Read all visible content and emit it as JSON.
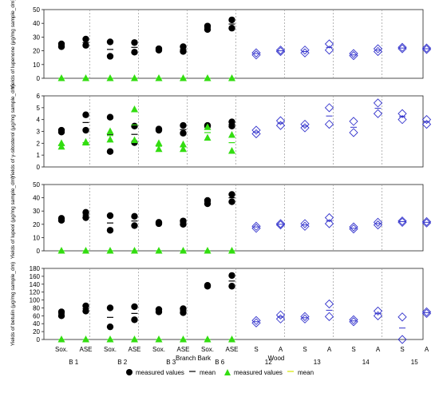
{
  "chart_data": {
    "type": "scatter",
    "x_positions": [
      "B1-Sox.",
      "B1-ASE",
      "B2-Sox.",
      "B2-ASE",
      "B3-Sox.",
      "B3-ASE",
      "B6-Sox.",
      "B6-ASE",
      "12-S",
      "12-A",
      "13-S",
      "13-A",
      "14-S",
      "14-A",
      "15-S",
      "15-A"
    ],
    "x_tick_labels": [
      "Sox.",
      "ASE",
      "Sox.",
      "ASE",
      "Sox.",
      "ASE",
      "Sox.",
      "ASE",
      "S",
      "A",
      "S",
      "A",
      "S",
      "A",
      "S",
      "A"
    ],
    "sample_labels": [
      "B 1",
      "B 2",
      "B 3",
      "B 6",
      "12",
      "13",
      "14",
      "15"
    ],
    "group_labels": [
      "Branch Bark",
      "Wood"
    ],
    "legend": [
      {
        "marker": "black-circle",
        "label": "measured values"
      },
      {
        "marker": "black-dash",
        "label": "mean"
      },
      {
        "marker": "green-triangle",
        "label": "measured values"
      },
      {
        "marker": "green-dash",
        "label": "mean"
      }
    ],
    "colors": {
      "bark_points": "#000000",
      "bark_mean": "#000000",
      "bark_green_points": "#33dd11",
      "bark_green_mean": "#33dd11",
      "wood_points": "#3333cc",
      "wood_mean": "#3333cc"
    },
    "panels": [
      {
        "ylabel": "Yields of lupenone (μg/mg sample_dm)",
        "ylim": [
          0,
          50
        ],
        "yticks": [
          0,
          10,
          20,
          30,
          40,
          50
        ],
        "series": [
          {
            "style": "bark",
            "pos": 0,
            "values": [
              23,
              25
            ],
            "mean": 24
          },
          {
            "style": "bark",
            "pos": 1,
            "values": [
              24,
              28.5
            ],
            "mean": 26
          },
          {
            "style": "bark",
            "pos": 2,
            "values": [
              16,
              26.5
            ],
            "mean": 21
          },
          {
            "style": "bark",
            "pos": 3,
            "values": [
              19,
              26
            ],
            "mean": 22.5
          },
          {
            "style": "bark",
            "pos": 4,
            "values": [
              20.5,
              21.5
            ],
            "mean": 21
          },
          {
            "style": "bark",
            "pos": 5,
            "values": [
              19.5,
              23
            ],
            "mean": 21
          },
          {
            "style": "bark",
            "pos": 6,
            "values": [
              35.5,
              38
            ],
            "mean": 37
          },
          {
            "style": "bark",
            "pos": 7,
            "values": [
              36.5,
              42.5
            ],
            "mean": 39.5
          },
          {
            "style": "bark_green",
            "pos": 0,
            "values": [
              0
            ],
            "mean": 0
          },
          {
            "style": "bark_green",
            "pos": 1,
            "values": [
              0
            ],
            "mean": 0
          },
          {
            "style": "bark_green",
            "pos": 2,
            "values": [
              0
            ],
            "mean": 0
          },
          {
            "style": "bark_green",
            "pos": 3,
            "values": [
              0
            ],
            "mean": 0
          },
          {
            "style": "bark_green",
            "pos": 4,
            "values": [
              0
            ],
            "mean": 0
          },
          {
            "style": "bark_green",
            "pos": 5,
            "values": [
              0
            ],
            "mean": 0
          },
          {
            "style": "bark_green",
            "pos": 6,
            "values": [
              0
            ],
            "mean": 0
          },
          {
            "style": "bark_green",
            "pos": 7,
            "values": [
              0
            ],
            "mean": 0
          },
          {
            "style": "wood",
            "pos": 8,
            "values": [
              17,
              18.5
            ],
            "mean": 18
          },
          {
            "style": "wood",
            "pos": 9,
            "values": [
              19.5,
              20.5
            ],
            "mean": 20
          },
          {
            "style": "wood",
            "pos": 10,
            "values": [
              18.5,
              20.5
            ],
            "mean": 19.5
          },
          {
            "style": "wood",
            "pos": 11,
            "values": [
              20.5,
              25
            ],
            "mean": 22.5
          },
          {
            "style": "wood",
            "pos": 12,
            "values": [
              16.5,
              18
            ],
            "mean": 17
          },
          {
            "style": "wood",
            "pos": 13,
            "values": [
              19.5,
              21.5
            ],
            "mean": 20.5
          },
          {
            "style": "wood",
            "pos": 14,
            "values": [
              21.5,
              22.5
            ],
            "mean": 22
          },
          {
            "style": "wood",
            "pos": 15,
            "values": [
              21,
              22
            ],
            "mean": 21.5
          }
        ]
      },
      {
        "ylabel": "Yields of γ-sitosterol (μg/mg sample_dm)",
        "ylim": [
          0,
          6
        ],
        "yticks": [
          0,
          1,
          2,
          3,
          4,
          5,
          6
        ],
        "series": [
          {
            "style": "bark",
            "pos": 0,
            "values": [
              2.95,
              3.1
            ],
            "mean": 3.0
          },
          {
            "style": "bark",
            "pos": 1,
            "values": [
              3.1,
              4.4
            ],
            "mean": 3.75
          },
          {
            "style": "bark",
            "pos": 2,
            "values": [
              1.3,
              4.2
            ],
            "mean": 2.75
          },
          {
            "style": "bark",
            "pos": 3,
            "values": [
              2.05,
              3.45
            ],
            "mean": 2.75
          },
          {
            "style": "bark",
            "pos": 4,
            "values": [
              3.1,
              3.2
            ],
            "mean": 3.15
          },
          {
            "style": "bark",
            "pos": 5,
            "values": [
              2.85,
              3.5
            ],
            "mean": 3.15
          },
          {
            "style": "bark",
            "pos": 6,
            "values": [
              3.45,
              3.5
            ],
            "mean": 3.5
          },
          {
            "style": "bark",
            "pos": 7,
            "values": [
              3.45,
              3.8
            ],
            "mean": 3.6
          },
          {
            "style": "bark_green",
            "pos": 0,
            "values": [
              1.7,
              2.0
            ],
            "mean": 1.85
          },
          {
            "style": "bark_green",
            "pos": 1,
            "values": [
              2.05,
              2.1
            ],
            "mean": 2.05
          },
          {
            "style": "bark_green",
            "pos": 2,
            "values": [
              2.3,
              3.0
            ],
            "mean": 2.65
          },
          {
            "style": "bark_green",
            "pos": 3,
            "values": [
              2.25,
              4.85
            ],
            "mean": 3.55
          },
          {
            "style": "bark_green",
            "pos": 4,
            "values": [
              1.5,
              2.0
            ],
            "mean": 1.75
          },
          {
            "style": "bark_green",
            "pos": 5,
            "values": [
              1.5,
              1.9
            ],
            "mean": 1.7
          },
          {
            "style": "bark_green",
            "pos": 6,
            "values": [
              2.45,
              3.35
            ],
            "mean": 2.9
          },
          {
            "style": "bark_green",
            "pos": 7,
            "values": [
              1.35,
              2.7
            ],
            "mean": 2.05
          },
          {
            "style": "wood",
            "pos": 8,
            "values": [
              2.8,
              3.1
            ],
            "mean": 2.95
          },
          {
            "style": "wood",
            "pos": 9,
            "values": [
              3.5,
              3.9
            ],
            "mean": 3.7
          },
          {
            "style": "wood",
            "pos": 10,
            "values": [
              3.3,
              3.6
            ],
            "mean": 3.45
          },
          {
            "style": "wood",
            "pos": 11,
            "values": [
              3.6,
              5.0
            ],
            "mean": 4.3
          },
          {
            "style": "wood",
            "pos": 12,
            "values": [
              2.9,
              3.85
            ],
            "mean": 3.35
          },
          {
            "style": "wood",
            "pos": 13,
            "values": [
              4.5,
              5.4
            ],
            "mean": 4.95
          },
          {
            "style": "wood",
            "pos": 14,
            "values": [
              4.0,
              4.5
            ],
            "mean": 4.25
          },
          {
            "style": "wood",
            "pos": 15,
            "values": [
              3.6,
              4.0
            ],
            "mean": 3.8
          }
        ]
      },
      {
        "ylabel": "Yields of lupeol (μg/mg sample_dm)",
        "ylim": [
          0,
          50
        ],
        "yticks": [
          0,
          10,
          20,
          30,
          40,
          50
        ],
        "series": [
          {
            "style": "bark",
            "pos": 0,
            "values": [
              23,
              24.5
            ],
            "mean": 24
          },
          {
            "style": "bark",
            "pos": 1,
            "values": [
              25,
              29
            ],
            "mean": 27
          },
          {
            "style": "bark",
            "pos": 2,
            "values": [
              15.5,
              26.5
            ],
            "mean": 21
          },
          {
            "style": "bark",
            "pos": 3,
            "values": [
              19,
              26
            ],
            "mean": 22.5
          },
          {
            "style": "bark",
            "pos": 4,
            "values": [
              20.5,
              21.5
            ],
            "mean": 21
          },
          {
            "style": "bark",
            "pos": 5,
            "values": [
              20,
              22.5
            ],
            "mean": 21.5
          },
          {
            "style": "bark",
            "pos": 6,
            "values": [
              35.5,
              38
            ],
            "mean": 37
          },
          {
            "style": "bark",
            "pos": 7,
            "values": [
              37,
              42.5
            ],
            "mean": 40
          },
          {
            "style": "bark_green",
            "pos": 0,
            "values": [
              0
            ],
            "mean": 0
          },
          {
            "style": "bark_green",
            "pos": 1,
            "values": [
              0
            ],
            "mean": 0
          },
          {
            "style": "bark_green",
            "pos": 2,
            "values": [
              0
            ],
            "mean": 0
          },
          {
            "style": "bark_green",
            "pos": 3,
            "values": [
              0
            ],
            "mean": 0
          },
          {
            "style": "bark_green",
            "pos": 4,
            "values": [
              0
            ],
            "mean": 0
          },
          {
            "style": "bark_green",
            "pos": 5,
            "values": [
              0
            ],
            "mean": 0
          },
          {
            "style": "bark_green",
            "pos": 6,
            "values": [
              0
            ],
            "mean": 0
          },
          {
            "style": "bark_green",
            "pos": 7,
            "values": [
              0
            ],
            "mean": 0
          },
          {
            "style": "wood",
            "pos": 8,
            "values": [
              17,
              18.5
            ],
            "mean": 18
          },
          {
            "style": "wood",
            "pos": 9,
            "values": [
              19.5,
              20.5
            ],
            "mean": 20
          },
          {
            "style": "wood",
            "pos": 10,
            "values": [
              18.5,
              20.5
            ],
            "mean": 19.5
          },
          {
            "style": "wood",
            "pos": 11,
            "values": [
              20.5,
              25
            ],
            "mean": 22.5
          },
          {
            "style": "wood",
            "pos": 12,
            "values": [
              16.5,
              18
            ],
            "mean": 17
          },
          {
            "style": "wood",
            "pos": 13,
            "values": [
              19.5,
              21.5
            ],
            "mean": 20.5
          },
          {
            "style": "wood",
            "pos": 14,
            "values": [
              21.5,
              22.5
            ],
            "mean": 22
          },
          {
            "style": "wood",
            "pos": 15,
            "values": [
              21,
              22
            ],
            "mean": 21.5
          }
        ]
      },
      {
        "ylabel": "Yields of betulin (μg/mg sample_dm)",
        "ylim": [
          0,
          180
        ],
        "yticks": [
          0,
          20,
          40,
          60,
          80,
          100,
          120,
          140,
          160,
          180
        ],
        "series": [
          {
            "style": "bark",
            "pos": 0,
            "values": [
              60,
              70
            ],
            "mean": 65
          },
          {
            "style": "bark",
            "pos": 1,
            "values": [
              72,
              85
            ],
            "mean": 78
          },
          {
            "style": "bark",
            "pos": 2,
            "values": [
              32,
              80
            ],
            "mean": 56
          },
          {
            "style": "bark",
            "pos": 3,
            "values": [
              50,
              83
            ],
            "mean": 66
          },
          {
            "style": "bark",
            "pos": 4,
            "values": [
              70,
              76
            ],
            "mean": 73
          },
          {
            "style": "bark",
            "pos": 5,
            "values": [
              68,
              78
            ],
            "mean": 73
          },
          {
            "style": "bark",
            "pos": 6,
            "values": [
              135,
              137
            ],
            "mean": 136
          },
          {
            "style": "bark",
            "pos": 7,
            "values": [
              135,
              162
            ],
            "mean": 148
          },
          {
            "style": "bark_green",
            "pos": 0,
            "values": [
              0
            ],
            "mean": 0
          },
          {
            "style": "bark_green",
            "pos": 1,
            "values": [
              0
            ],
            "mean": 0
          },
          {
            "style": "bark_green",
            "pos": 2,
            "values": [
              0
            ],
            "mean": 0
          },
          {
            "style": "bark_green",
            "pos": 3,
            "values": [
              0
            ],
            "mean": 0
          },
          {
            "style": "bark_green",
            "pos": 4,
            "values": [
              0
            ],
            "mean": 0
          },
          {
            "style": "bark_green",
            "pos": 5,
            "values": [
              0
            ],
            "mean": 0
          },
          {
            "style": "bark_green",
            "pos": 6,
            "values": [
              0
            ],
            "mean": 0
          },
          {
            "style": "bark_green",
            "pos": 7,
            "values": [
              0
            ],
            "mean": 0
          },
          {
            "style": "wood",
            "pos": 8,
            "values": [
              42,
              48
            ],
            "mean": 45
          },
          {
            "style": "wood",
            "pos": 9,
            "values": [
              52,
              62
            ],
            "mean": 57
          },
          {
            "style": "wood",
            "pos": 10,
            "values": [
              52,
              58
            ],
            "mean": 55
          },
          {
            "style": "wood",
            "pos": 11,
            "values": [
              58,
              90
            ],
            "mean": 74
          },
          {
            "style": "wood",
            "pos": 12,
            "values": [
              45,
              50
            ],
            "mean": 47
          },
          {
            "style": "wood",
            "pos": 13,
            "values": [
              60,
              72
            ],
            "mean": 66
          },
          {
            "style": "wood",
            "pos": 14,
            "values": [
              0,
              57
            ],
            "mean": 29
          },
          {
            "style": "wood",
            "pos": 15,
            "values": [
              66,
              70
            ],
            "mean": 68
          }
        ]
      }
    ]
  }
}
